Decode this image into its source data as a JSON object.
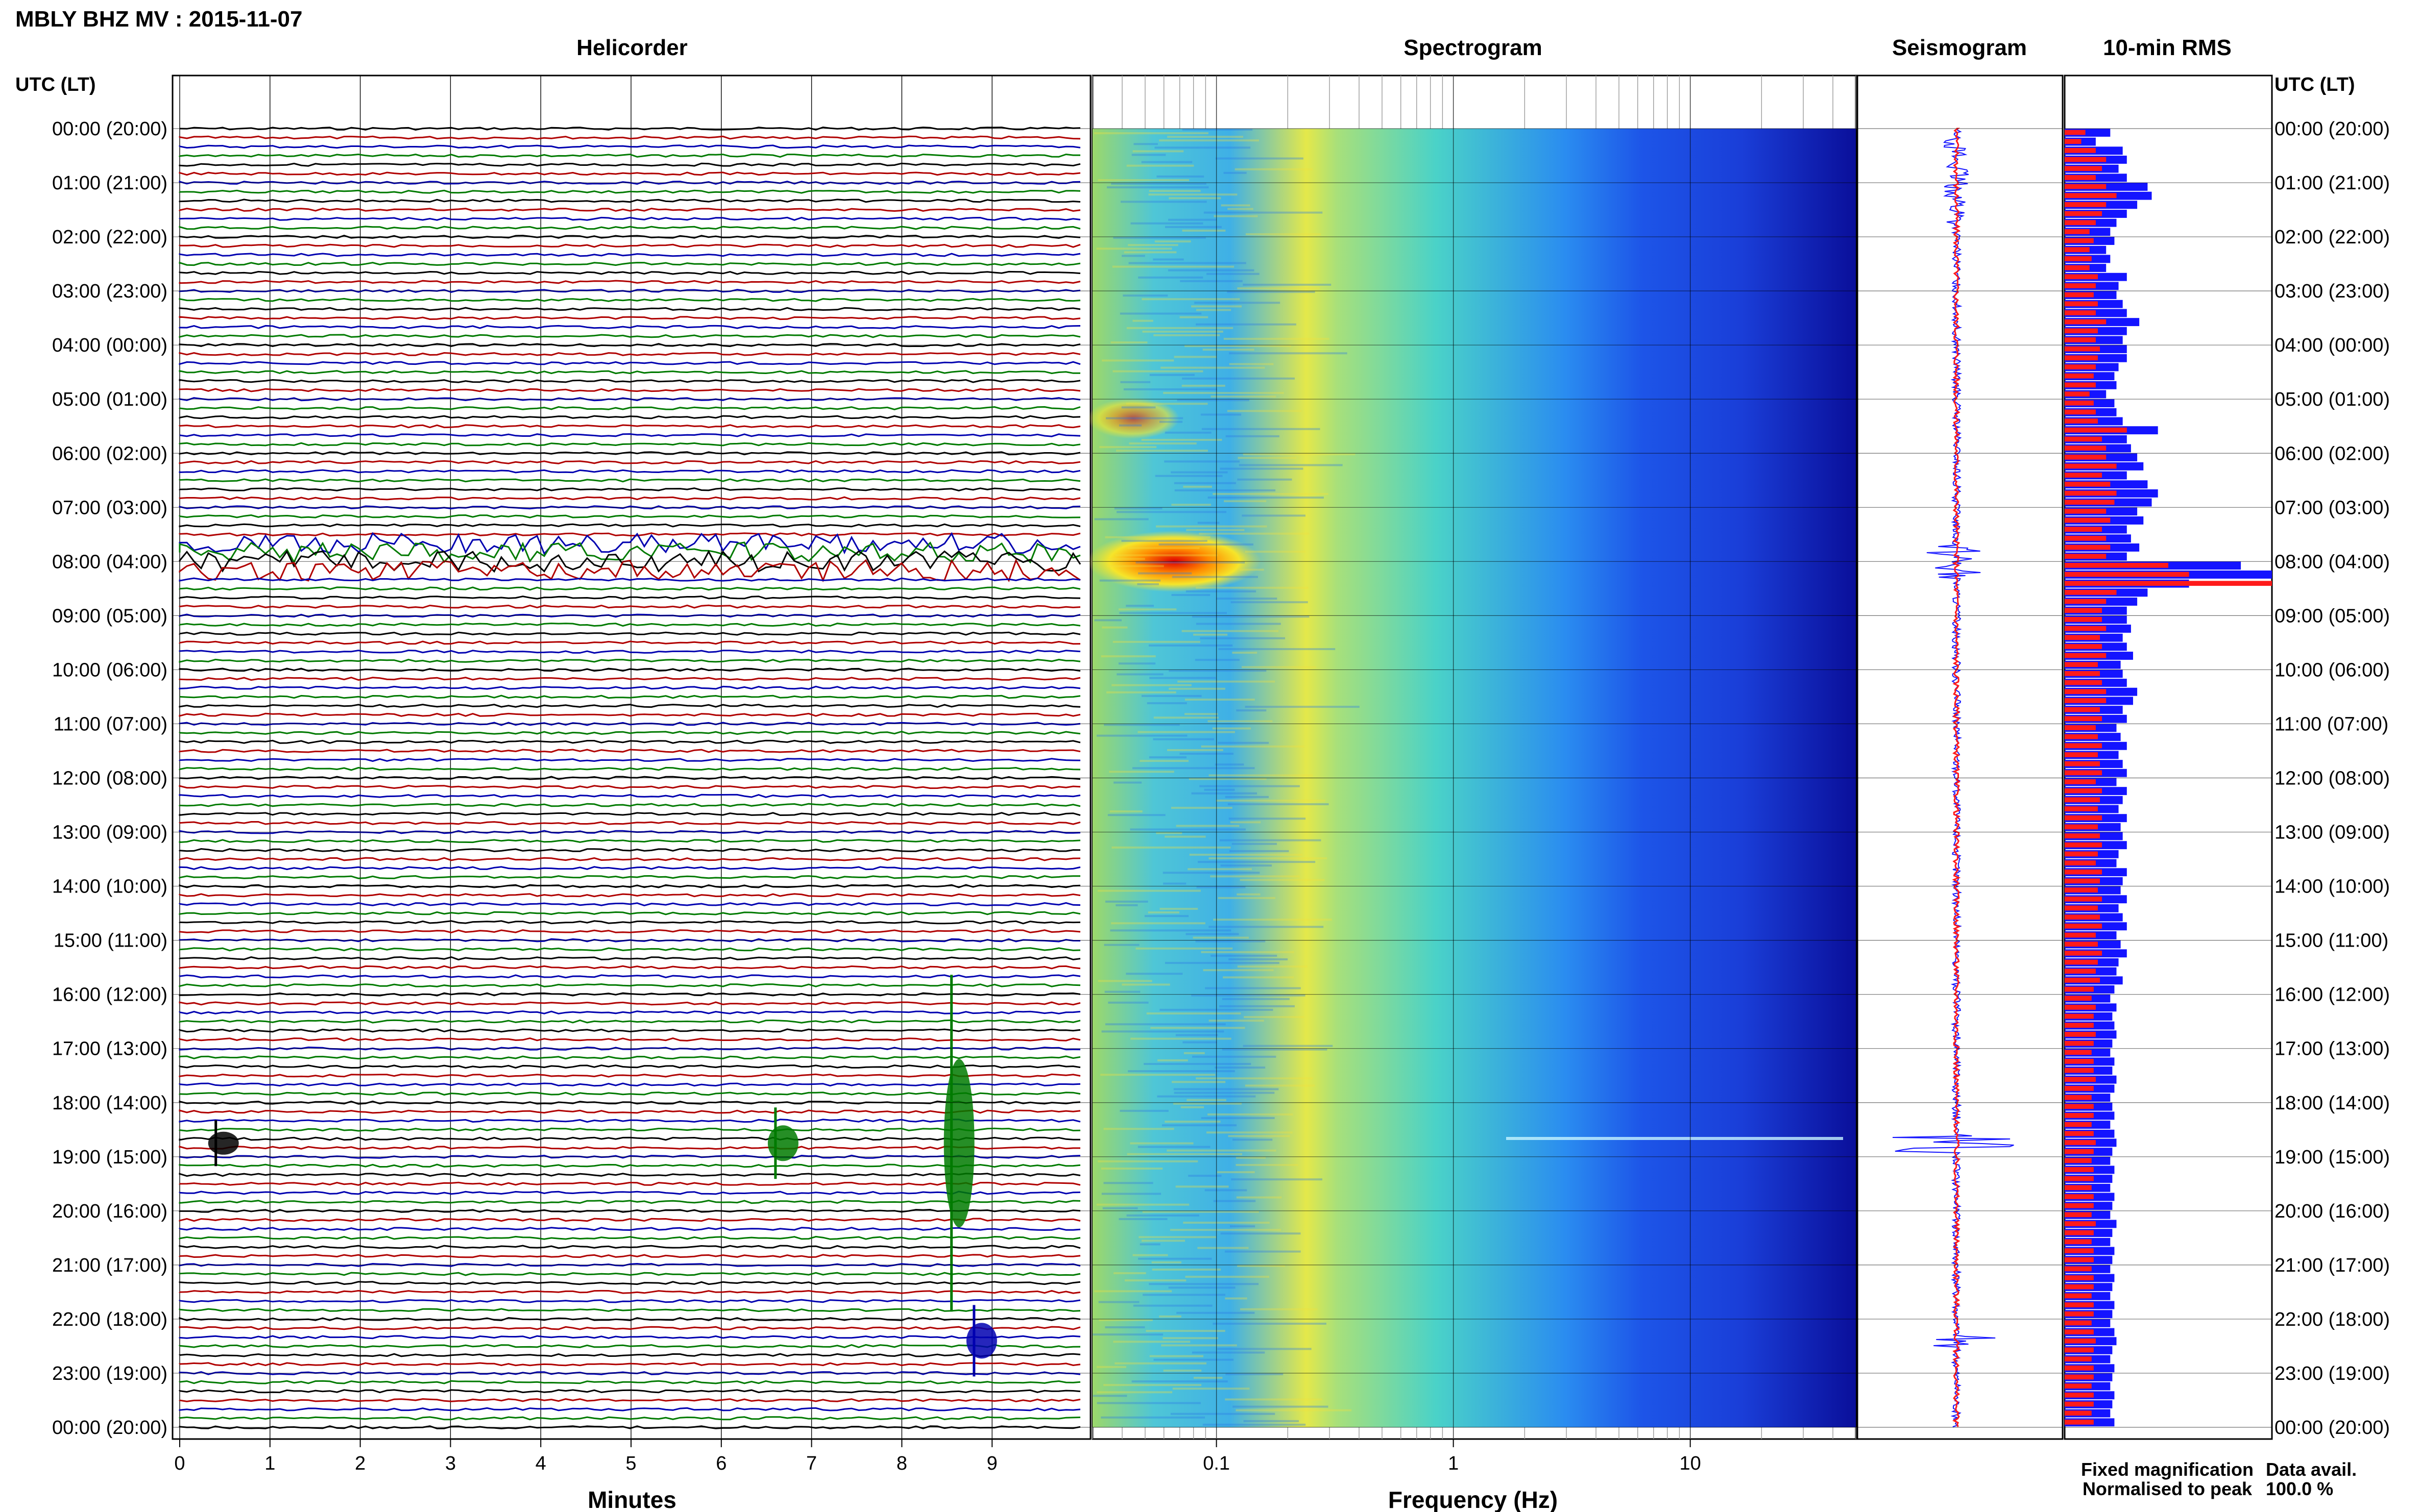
{
  "title": "MBLY BHZ MV : 2015-11-07",
  "panels": {
    "helicorder": "Helicorder",
    "spectrogram": "Spectrogram",
    "seismogram": "Seismogram",
    "rms": "10-min RMS"
  },
  "axis_header_left": "UTC (LT)",
  "axis_header_right": "UTC (LT)",
  "time_labels": [
    "00:00 (20:00)",
    "01:00 (21:00)",
    "02:00 (22:00)",
    "03:00 (23:00)",
    "04:00 (00:00)",
    "05:00 (01:00)",
    "06:00 (02:00)",
    "07:00 (03:00)",
    "08:00 (04:00)",
    "09:00 (05:00)",
    "10:00 (06:00)",
    "11:00 (07:00)",
    "12:00 (08:00)",
    "13:00 (09:00)",
    "14:00 (10:00)",
    "15:00 (11:00)",
    "16:00 (12:00)",
    "17:00 (13:00)",
    "18:00 (14:00)",
    "19:00 (15:00)",
    "20:00 (16:00)",
    "21:00 (17:00)",
    "22:00 (18:00)",
    "23:00 (19:00)",
    "00:00 (20:00)"
  ],
  "minutes_ticks": [
    "0",
    "1",
    "2",
    "3",
    "4",
    "5",
    "6",
    "7",
    "8",
    "9"
  ],
  "minutes_label": "Minutes",
  "freq_ticks": [
    "0.1",
    "1",
    "10"
  ],
  "freq_label": "Frequency (Hz)",
  "legend": {
    "fixed": "Fixed magnification",
    "fixed_color": "#1414ff",
    "normalised": "Normalised to peak",
    "normalised_color": "#ff1a1a"
  },
  "data_avail_label": "Data avail.",
  "data_avail_value": "100.0 %",
  "colors": {
    "trace_cycle": [
      "#000000",
      "#b00000",
      "#0000b0",
      "#007a00"
    ],
    "rms_fixed": "#1414ff",
    "rms_normalised": "#ff1a1a"
  },
  "chart_data": [
    {
      "type": "line",
      "title": "Helicorder",
      "xlabel": "Minutes",
      "xlim": [
        0,
        10
      ],
      "rows_per_hour": 6,
      "notable_events": [
        {
          "hour": 7.9,
          "minute_start": 0,
          "minute_end": 10,
          "note": ""
        },
        {
          "hour": 18.6,
          "minute": 0.4
        },
        {
          "hour": 18.6,
          "minute": 6.6
        },
        {
          "hour": 18.6,
          "minute": 8.6
        },
        {
          "hour": 22.3,
          "minute": 8.8
        }
      ]
    },
    {
      "type": "heatmap",
      "title": "Spectrogram",
      "xlabel": "Frequency (Hz)",
      "xscale": "log",
      "xlim": [
        0.03,
        50
      ],
      "y": "hours 0-24 UTC"
    },
    {
      "type": "bar",
      "title": "10-min RMS",
      "orientation": "horizontal",
      "bin_minutes": 10,
      "series": [
        {
          "name": "Fixed magnification",
          "values": [
            0.22,
            0.15,
            0.28,
            0.3,
            0.26,
            0.3,
            0.4,
            0.42,
            0.35,
            0.3,
            0.25,
            0.22,
            0.24,
            0.2,
            0.22,
            0.2,
            0.3,
            0.26,
            0.25,
            0.28,
            0.3,
            0.36,
            0.3,
            0.28,
            0.3,
            0.3,
            0.26,
            0.24,
            0.25,
            0.2,
            0.24,
            0.25,
            0.28,
            0.45,
            0.3,
            0.32,
            0.35,
            0.38,
            0.3,
            0.4,
            0.45,
            0.42,
            0.35,
            0.38,
            0.3,
            0.32,
            0.36,
            0.3,
            0.85,
            1.0,
            0.6,
            0.4,
            0.35,
            0.3,
            0.3,
            0.32,
            0.28,
            0.3,
            0.33,
            0.27,
            0.28,
            0.3,
            0.35,
            0.33,
            0.28,
            0.3,
            0.25,
            0.27,
            0.3,
            0.26,
            0.28,
            0.3,
            0.25,
            0.3,
            0.28,
            0.26,
            0.3,
            0.27,
            0.28,
            0.3,
            0.26,
            0.25,
            0.3,
            0.28,
            0.27,
            0.3,
            0.26,
            0.28,
            0.3,
            0.25,
            0.27,
            0.3,
            0.26,
            0.25,
            0.28,
            0.24,
            0.22,
            0.25,
            0.23,
            0.24,
            0.25,
            0.23,
            0.22,
            0.24,
            0.23,
            0.25,
            0.24,
            0.22,
            0.23,
            0.24,
            0.22,
            0.24,
            0.25,
            0.23,
            0.22,
            0.24,
            0.23,
            0.22,
            0.24,
            0.23,
            0.22,
            0.25,
            0.23,
            0.22,
            0.24,
            0.23,
            0.22,
            0.24,
            0.23,
            0.22,
            0.24,
            0.23,
            0.22,
            0.24,
            0.25,
            0.23,
            0.22,
            0.24,
            0.23,
            0.22,
            0.24,
            0.23,
            0.22,
            0.24
          ]
        },
        {
          "name": "Normalised to peak",
          "values": [
            0.1,
            0.08,
            0.15,
            0.2,
            0.18,
            0.15,
            0.2,
            0.25,
            0.2,
            0.18,
            0.15,
            0.12,
            0.14,
            0.12,
            0.13,
            0.12,
            0.16,
            0.15,
            0.14,
            0.16,
            0.15,
            0.2,
            0.16,
            0.15,
            0.17,
            0.16,
            0.15,
            0.14,
            0.15,
            0.12,
            0.14,
            0.15,
            0.16,
            0.3,
            0.18,
            0.2,
            0.2,
            0.25,
            0.18,
            0.22,
            0.25,
            0.24,
            0.2,
            0.22,
            0.18,
            0.2,
            0.22,
            0.2,
            0.5,
            0.6,
            1.0,
            0.25,
            0.2,
            0.18,
            0.18,
            0.2,
            0.17,
            0.18,
            0.2,
            0.16,
            0.17,
            0.18,
            0.2,
            0.2,
            0.17,
            0.18,
            0.15,
            0.16,
            0.18,
            0.16,
            0.17,
            0.18,
            0.15,
            0.18,
            0.17,
            0.16,
            0.18,
            0.16,
            0.17,
            0.18,
            0.16,
            0.15,
            0.18,
            0.17,
            0.16,
            0.18,
            0.16,
            0.17,
            0.18,
            0.15,
            0.16,
            0.18,
            0.16,
            0.15,
            0.17,
            0.14,
            0.13,
            0.15,
            0.14,
            0.14,
            0.15,
            0.14,
            0.13,
            0.14,
            0.14,
            0.15,
            0.14,
            0.13,
            0.14,
            0.14,
            0.13,
            0.14,
            0.15,
            0.14,
            0.13,
            0.14,
            0.14,
            0.13,
            0.14,
            0.14,
            0.13,
            0.15,
            0.14,
            0.13,
            0.14,
            0.14,
            0.13,
            0.14,
            0.14,
            0.13,
            0.14,
            0.14,
            0.13,
            0.14,
            0.15,
            0.14,
            0.13,
            0.14,
            0.14,
            0.13,
            0.14,
            0.14,
            0.13,
            0.14
          ]
        }
      ]
    }
  ]
}
